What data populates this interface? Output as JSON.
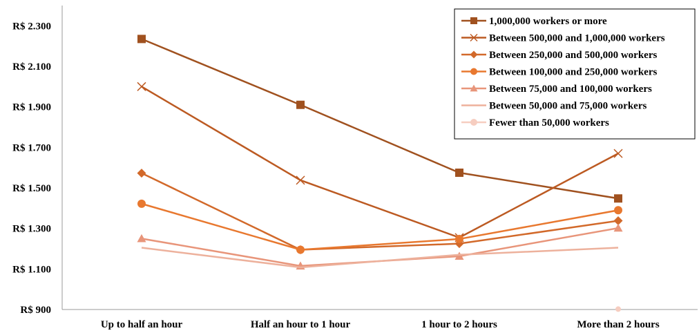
{
  "chart_data": {
    "type": "line",
    "title": "",
    "xlabel": "",
    "ylabel": "",
    "categories": [
      "Up to half an hour",
      "Half an hour to 1 hour",
      "1 hour to 2 hours",
      "More than 2 hours"
    ],
    "ylim": [
      900,
      2400
    ],
    "yticks": [
      900,
      1100,
      1300,
      1500,
      1700,
      1900,
      2100,
      2300
    ],
    "ytick_labels": [
      "R$ 900",
      "R$ 1.100",
      "R$ 1.300",
      "R$ 1.500",
      "R$ 1.700",
      "R$ 1.900",
      "R$ 2.100",
      "R$ 2.300"
    ],
    "grid": false,
    "legend_position": "top-right",
    "series": [
      {
        "name": "1,000,000 workers or more",
        "values": [
          2235,
          1910,
          1575,
          1448
        ],
        "color": "#A0511F",
        "marker": "square"
      },
      {
        "name": "Between 500,000 and 1,000,000 workers",
        "values": [
          2000,
          1538,
          1255,
          1670
        ],
        "color": "#BC5A22",
        "marker": "x"
      },
      {
        "name": "Between 250,000 and 500,000 workers",
        "values": [
          1573,
          1195,
          1225,
          1338
        ],
        "color": "#D2692A",
        "marker": "diamond"
      },
      {
        "name": "Between 100,000 and 250,000 workers",
        "values": [
          1422,
          1195,
          1248,
          1390
        ],
        "color": "#E8782F",
        "marker": "circle"
      },
      {
        "name": "Between 75,000 and 100,000 workers",
        "values": [
          1250,
          1115,
          1163,
          1302
        ],
        "color": "#E8957A",
        "marker": "triangle"
      },
      {
        "name": "Between 50,000 and 75,000 workers",
        "values": [
          1205,
          1108,
          1170,
          1205
        ],
        "color": "#EDB19C",
        "marker": "none"
      },
      {
        "name": "Fewer than 50,000 workers",
        "values": [
          null,
          null,
          null,
          902
        ],
        "color": "#F6CDC0",
        "marker": "circle"
      }
    ]
  }
}
